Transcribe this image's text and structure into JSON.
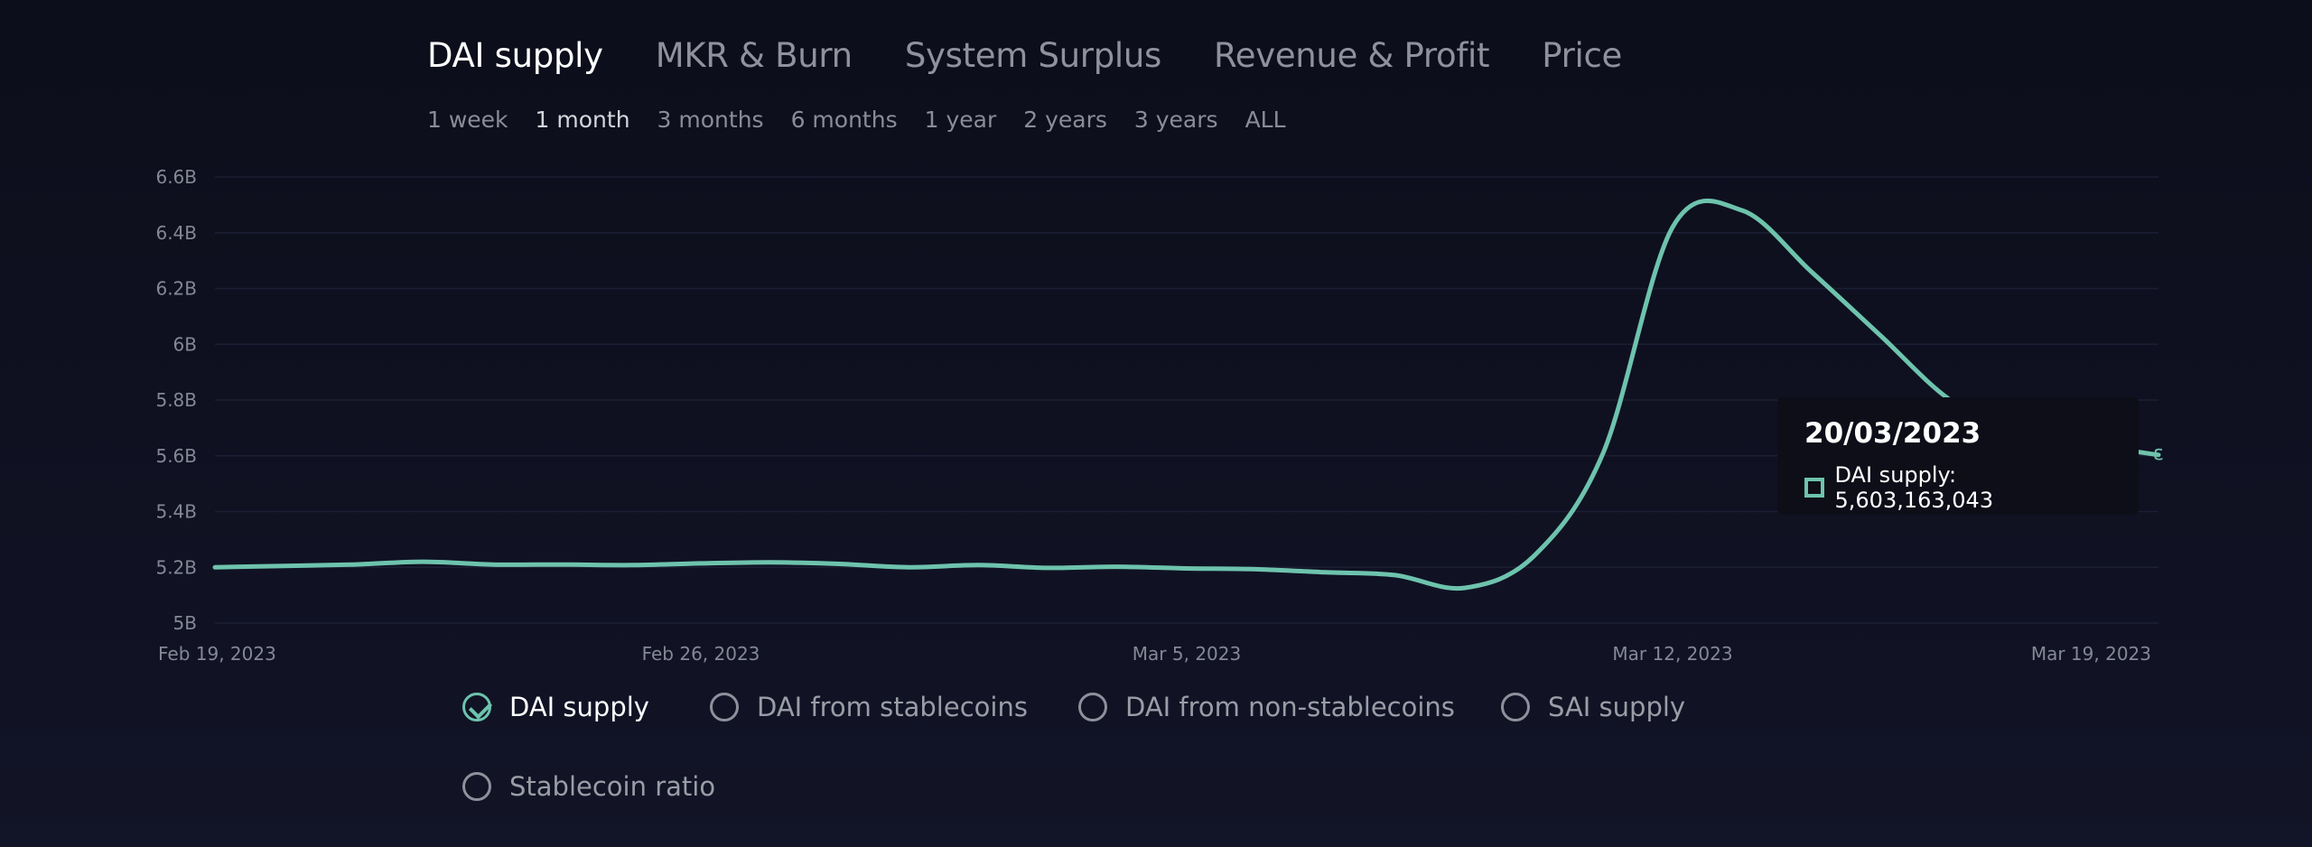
{
  "tabs": [
    {
      "label": "DAI supply",
      "active": true
    },
    {
      "label": "MKR & Burn",
      "active": false
    },
    {
      "label": "System Surplus",
      "active": false
    },
    {
      "label": "Revenue & Profit",
      "active": false
    },
    {
      "label": "Price",
      "active": false
    }
  ],
  "ranges": [
    {
      "label": "1 week",
      "active": false
    },
    {
      "label": "1 month",
      "active": true
    },
    {
      "label": "3 months",
      "active": false
    },
    {
      "label": "6 months",
      "active": false
    },
    {
      "label": "1 year",
      "active": false
    },
    {
      "label": "2 years",
      "active": false
    },
    {
      "label": "3 years",
      "active": false
    },
    {
      "label": "ALL",
      "active": false
    }
  ],
  "chart_data": {
    "type": "line",
    "title": "",
    "xlabel": "",
    "ylabel": "",
    "grid": true,
    "line_color": "#6ec3ad",
    "ylim": [
      5.0,
      6.6
    ],
    "xlim": [
      "2023-02-19",
      "2023-03-19"
    ],
    "yticks": [
      "5B",
      "5.2B",
      "5.4B",
      "5.6B",
      "5.8B",
      "6B",
      "6.2B",
      "6.4B",
      "6.6B"
    ],
    "ytick_values": [
      5.0,
      5.2,
      5.4,
      5.6,
      5.8,
      6.0,
      6.2,
      6.4,
      6.6
    ],
    "xticks": [
      {
        "label": "Feb 19, 2023",
        "date": "2023-02-19"
      },
      {
        "label": "Feb 26, 2023",
        "date": "2023-02-26"
      },
      {
        "label": "Mar 5, 2023",
        "date": "2023-03-05"
      },
      {
        "label": "Mar 12, 2023",
        "date": "2023-03-12"
      },
      {
        "label": "Mar 19, 2023",
        "date": "2023-03-19"
      }
    ],
    "series": [
      {
        "name": "DAI supply",
        "x": [
          "2023-02-19",
          "2023-02-20",
          "2023-02-21",
          "2023-02-22",
          "2023-02-23",
          "2023-02-24",
          "2023-02-25",
          "2023-02-26",
          "2023-02-27",
          "2023-02-28",
          "2023-03-01",
          "2023-03-02",
          "2023-03-03",
          "2023-03-04",
          "2023-03-05",
          "2023-03-06",
          "2023-03-07",
          "2023-03-08",
          "2023-03-09",
          "2023-03-10",
          "2023-03-11",
          "2023-03-12",
          "2023-03-13",
          "2023-03-14",
          "2023-03-15",
          "2023-03-16",
          "2023-03-17",
          "2023-03-18",
          "2023-03-19"
        ],
        "values": [
          5.2,
          5.205,
          5.21,
          5.22,
          5.21,
          5.21,
          5.208,
          5.214,
          5.218,
          5.212,
          5.2,
          5.208,
          5.198,
          5.202,
          5.196,
          5.193,
          5.182,
          5.172,
          5.126,
          5.24,
          5.61,
          6.42,
          6.48,
          6.26,
          6.03,
          5.8,
          5.68,
          5.64,
          5.603
        ]
      }
    ]
  },
  "tooltip": {
    "date": "20/03/2023",
    "text": "DAI supply: 5,603,163,043"
  },
  "legend": [
    {
      "label": "DAI supply",
      "active": true
    },
    {
      "label": "DAI from stablecoins",
      "active": false
    },
    {
      "label": "DAI from non-stablecoins",
      "active": false
    },
    {
      "label": "SAI supply",
      "active": false
    },
    {
      "label": "Stablecoin ratio",
      "active": false
    }
  ]
}
